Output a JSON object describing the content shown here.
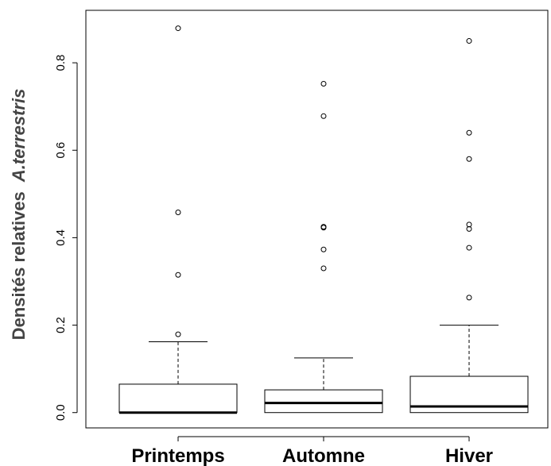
{
  "chart_data": {
    "type": "boxplot",
    "ylabel": "Densités relatives",
    "ylabel_italic": "A.terrestris",
    "ylim": [
      -0.035,
      0.92
    ],
    "yticks": [
      {
        "v": 0.0,
        "label": "0.0"
      },
      {
        "v": 0.2,
        "label": "0.2"
      },
      {
        "v": 0.4,
        "label": "0.4"
      },
      {
        "v": 0.6,
        "label": "0.6"
      },
      {
        "v": 0.8,
        "label": "0.8"
      }
    ],
    "grid": false,
    "categories": [
      "Printemps",
      "Automne",
      "Hiver"
    ],
    "boxes": [
      {
        "category": "Printemps",
        "whisker_low": 0.0,
        "q1": 0.0,
        "median": 0.0,
        "q3": 0.065,
        "whisker_high": 0.162,
        "outliers": [
          0.179,
          0.315,
          0.458,
          0.879
        ]
      },
      {
        "category": "Automne",
        "whisker_low": 0.0,
        "q1": 0.0,
        "median": 0.022,
        "q3": 0.052,
        "whisker_high": 0.125,
        "outliers": [
          0.33,
          0.373,
          0.423,
          0.425,
          0.678,
          0.752
        ]
      },
      {
        "category": "Hiver",
        "whisker_low": 0.0,
        "q1": 0.0,
        "median": 0.014,
        "q3": 0.083,
        "whisker_high": 0.2,
        "outliers": [
          0.263,
          0.377,
          0.42,
          0.43,
          0.58,
          0.64,
          0.85
        ]
      }
    ]
  }
}
